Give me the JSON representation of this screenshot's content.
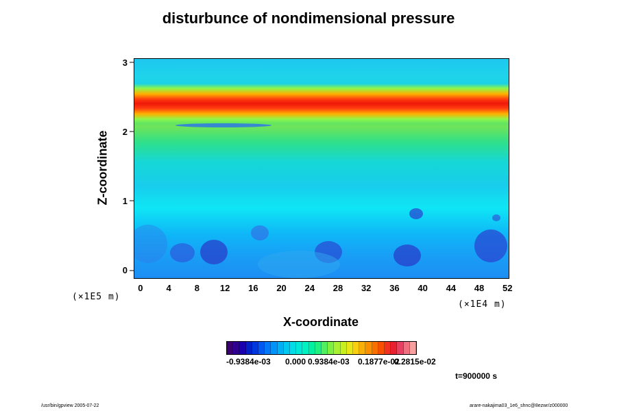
{
  "chart_data": {
    "type": "heatmap",
    "title": "disturbunce of nondimensional pressure",
    "xlabel": "X-coordinate",
    "ylabel": "Z-coordinate",
    "x_scale": "(×1E4 m)",
    "y_scale": "(×1E5 m)",
    "xlim": [
      -1,
      52
    ],
    "ylim": [
      -0.12,
      3.05
    ],
    "x_ticks": [
      "0",
      "4",
      "8",
      "12",
      "16",
      "20",
      "24",
      "28",
      "32",
      "36",
      "40",
      "44",
      "48",
      "52"
    ],
    "y_ticks": [
      "0",
      "1",
      "2",
      "3"
    ],
    "colorbar_labels": [
      "-0.9384e-03",
      "0.000",
      "0.9384e-03",
      "0.1877e-02",
      "0.2815e-02"
    ],
    "colorbar_range": [
      -0.001,
      0.0032
    ],
    "time_label": "t=900000 s"
  },
  "footer": {
    "left": "/usr/bin/gpview 2005-07-22",
    "right": "arare-nakajima03_1e6_shnc@8ezwr/z000000"
  }
}
